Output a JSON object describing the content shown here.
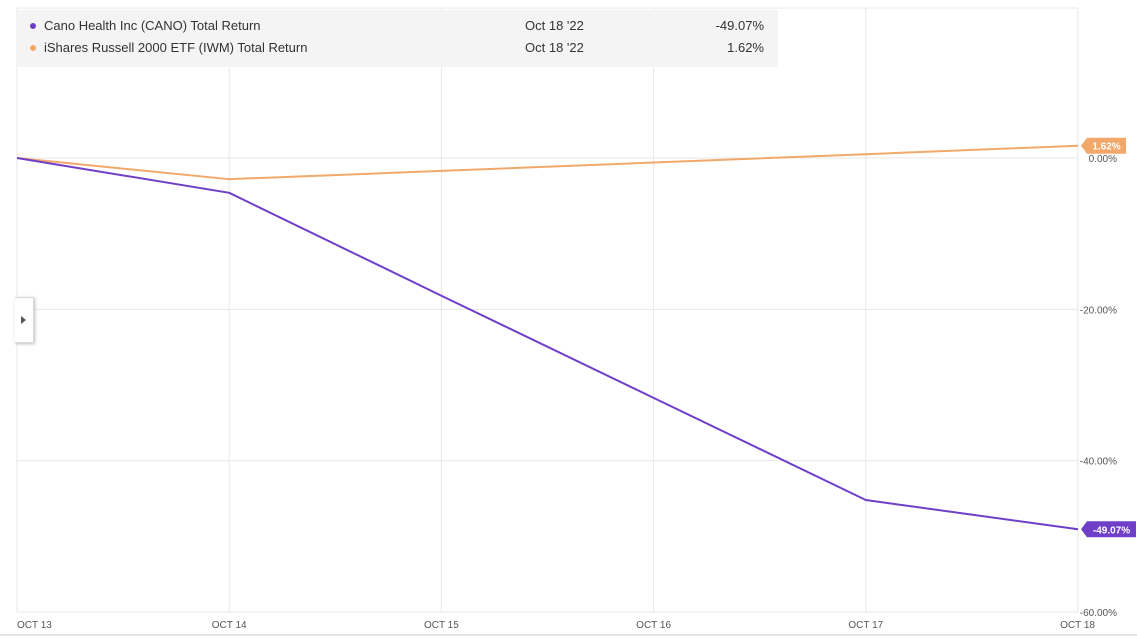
{
  "legend": [
    {
      "name": "Cano Health Inc (CANO) Total Return",
      "date": "Oct 18 '22",
      "value": "-49.07%",
      "color": "#6f3fc8"
    },
    {
      "name": "iShares Russell 2000 ETF (IWM) Total Return",
      "date": "Oct 18 '22",
      "value": "1.62%",
      "color": "#f2a86b"
    }
  ],
  "chart_data": {
    "type": "line",
    "x": [
      "OCT 13",
      "OCT 14",
      "OCT 15",
      "OCT 16",
      "OCT 17",
      "OCT 18"
    ],
    "series": [
      {
        "name": "Cano Health Inc (CANO) Total Return",
        "color": "#6f3fc8",
        "values": [
          0,
          -4.6,
          -18.2,
          -31.7,
          -45.2,
          -49.07
        ],
        "end_label": "-49.07%"
      },
      {
        "name": "iShares Russell 2000 ETF (IWM) Total Return",
        "color": "#f2a86b",
        "values": [
          0,
          -2.8,
          -1.7,
          -0.6,
          0.5,
          1.62
        ],
        "end_label": "1.62%"
      }
    ],
    "y_ticks": [
      {
        "value": 0,
        "label": "0.00%"
      },
      {
        "value": -20,
        "label": "-20.00%"
      },
      {
        "value": -40,
        "label": "-40.00%"
      },
      {
        "value": -60,
        "label": "-60.00%"
      }
    ],
    "ylim": [
      -60,
      20
    ],
    "grid": true,
    "legend_position": "top-left"
  }
}
